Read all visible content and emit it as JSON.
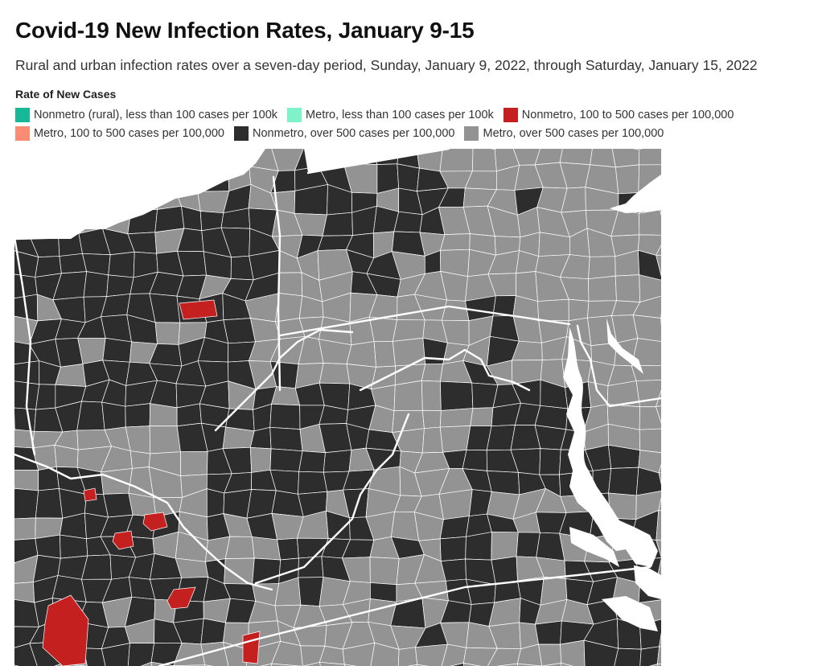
{
  "title": "Covid-19 New Infection Rates, January 9-15",
  "subtitle": "Rural and urban infection rates over a seven-day period, Sunday, January 9, 2022, through Saturday, January 15, 2022",
  "legend": {
    "title": "Rate of New Cases",
    "items": [
      {
        "label": "Nonmetro (rural), less than 100 cases per 100k",
        "color": "#17b897"
      },
      {
        "label": "Metro, less than 100 cases per 100k",
        "color": "#7ef2c9"
      },
      {
        "label": "Nonmetro, 100 to 500 cases per 100,000",
        "color": "#c4201f"
      },
      {
        "label": "Metro, 100 to 500 cases per 100,000",
        "color": "#f98c73"
      },
      {
        "label": "Nonmetro, over 500 cases per 100,000",
        "color": "#2d2d2d"
      },
      {
        "label": "Metro, over 500 cases per 100,000",
        "color": "#939393"
      }
    ]
  },
  "map": {
    "colors": {
      "water": "#ffffff",
      "nonmetro_high": "#2d2d2d",
      "metro_high": "#939393",
      "nonmetro_mid": "#c4201f",
      "county_border": "#ffffff",
      "state_border": "#ffffff"
    }
  }
}
